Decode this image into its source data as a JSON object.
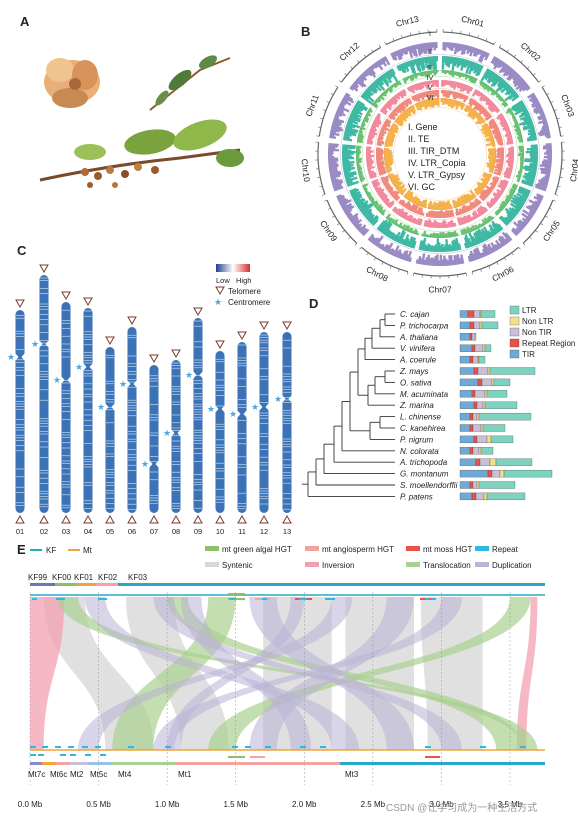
{
  "panels": {
    "a": "A",
    "b": "B",
    "c": "C",
    "d": "D",
    "e": "E"
  },
  "circos": {
    "chromosomes": [
      "Chr01",
      "Chr02",
      "Chr03",
      "Chr04",
      "Chr05",
      "Chr06",
      "Chr07",
      "Chr08",
      "Chr09",
      "Chr10",
      "Chr11",
      "Chr12",
      "Chr13"
    ],
    "ring_numerals": [
      "I",
      "II",
      "III",
      "IV",
      "V",
      "VI"
    ],
    "legend": [
      "I. Gene",
      "II. TE",
      "III. TIR_DTM",
      "IV. LTR_Copia",
      "V. LTR_Gypsy",
      "VI. GC"
    ],
    "colors": {
      "gene": "#9b8bc4",
      "te": "#3fb9a3",
      "tir": "#6cc16e",
      "copia": "#f08a9c",
      "gypsy": "#f08a7c",
      "gc": "#f4b24a"
    }
  },
  "karyotype": {
    "scale_low": "Low",
    "scale_high": "High",
    "telomere_label": "Telomere",
    "centromere_label": "Centromere",
    "chromosomes": [
      "01",
      "02",
      "03",
      "04",
      "05",
      "06",
      "07",
      "08",
      "09",
      "10",
      "11",
      "12",
      "13"
    ],
    "colors": {
      "low": "#1f3f8f",
      "high": "#d7302b",
      "telomere": "#7a3b2e",
      "centromere": "#4aa8e0"
    }
  },
  "phylogeny": {
    "species": [
      "C. cajan",
      "P. trichocarpa",
      "A. thaliana",
      "V. vinifera",
      "A. coerule",
      "Z. mays",
      "O. sativa",
      "M. acuminata",
      "Z. marina",
      "L. chinense",
      "C. kanehirea",
      "P. nigrum",
      "N. colorata",
      "A. trichopoda",
      "G. montanum",
      "S. moellendorffii",
      "P. patens"
    ],
    "legend": [
      "LTR",
      "Non LTR",
      "Non TIR",
      "Repeat Region",
      "TIR"
    ],
    "colors": {
      "LTR": "#7dd3c0",
      "NonLTR": "#f3e08a",
      "NonTIR": "#c9bfd9",
      "Repeat": "#e8524a",
      "TIR": "#6fa9d6"
    }
  },
  "synteny": {
    "legend": [
      "KF",
      "Mt",
      "mt green algal HGT",
      "mt angiosperm HGT",
      "mt moss HGT",
      "Repeat",
      "Syntenic",
      "Inversion",
      "Translocation",
      "Duplication"
    ],
    "top_segments": [
      "KF99",
      "KF00",
      "KF01",
      "KF02",
      "KF03"
    ],
    "bottom_segments": [
      "Mt7c",
      "Mt6c",
      "Mt2",
      "Mt5c",
      "Mt4",
      "Mt1",
      "Mt3"
    ],
    "axis_ticks": [
      "0.0 Mb",
      "0.5 Mb",
      "1.0 Mb",
      "1.5 Mb",
      "2.0 Mb",
      "2.5 Mb",
      "3.0 Mb",
      "3.5 Mb"
    ],
    "colors": {
      "KF": "#2aa7c9",
      "Mt": "#f2a33a",
      "green": "#8cc06a",
      "angio": "#f4a3a0",
      "moss": "#e8524a",
      "repeat": "#2fb8e0",
      "syntenic": "#d8d8d8",
      "inversion": "#f2a0b0",
      "translocation": "#a9d08e",
      "duplication": "#b9b3d6"
    }
  },
  "watermark": "CSDN @让学习成为一种生活方式"
}
